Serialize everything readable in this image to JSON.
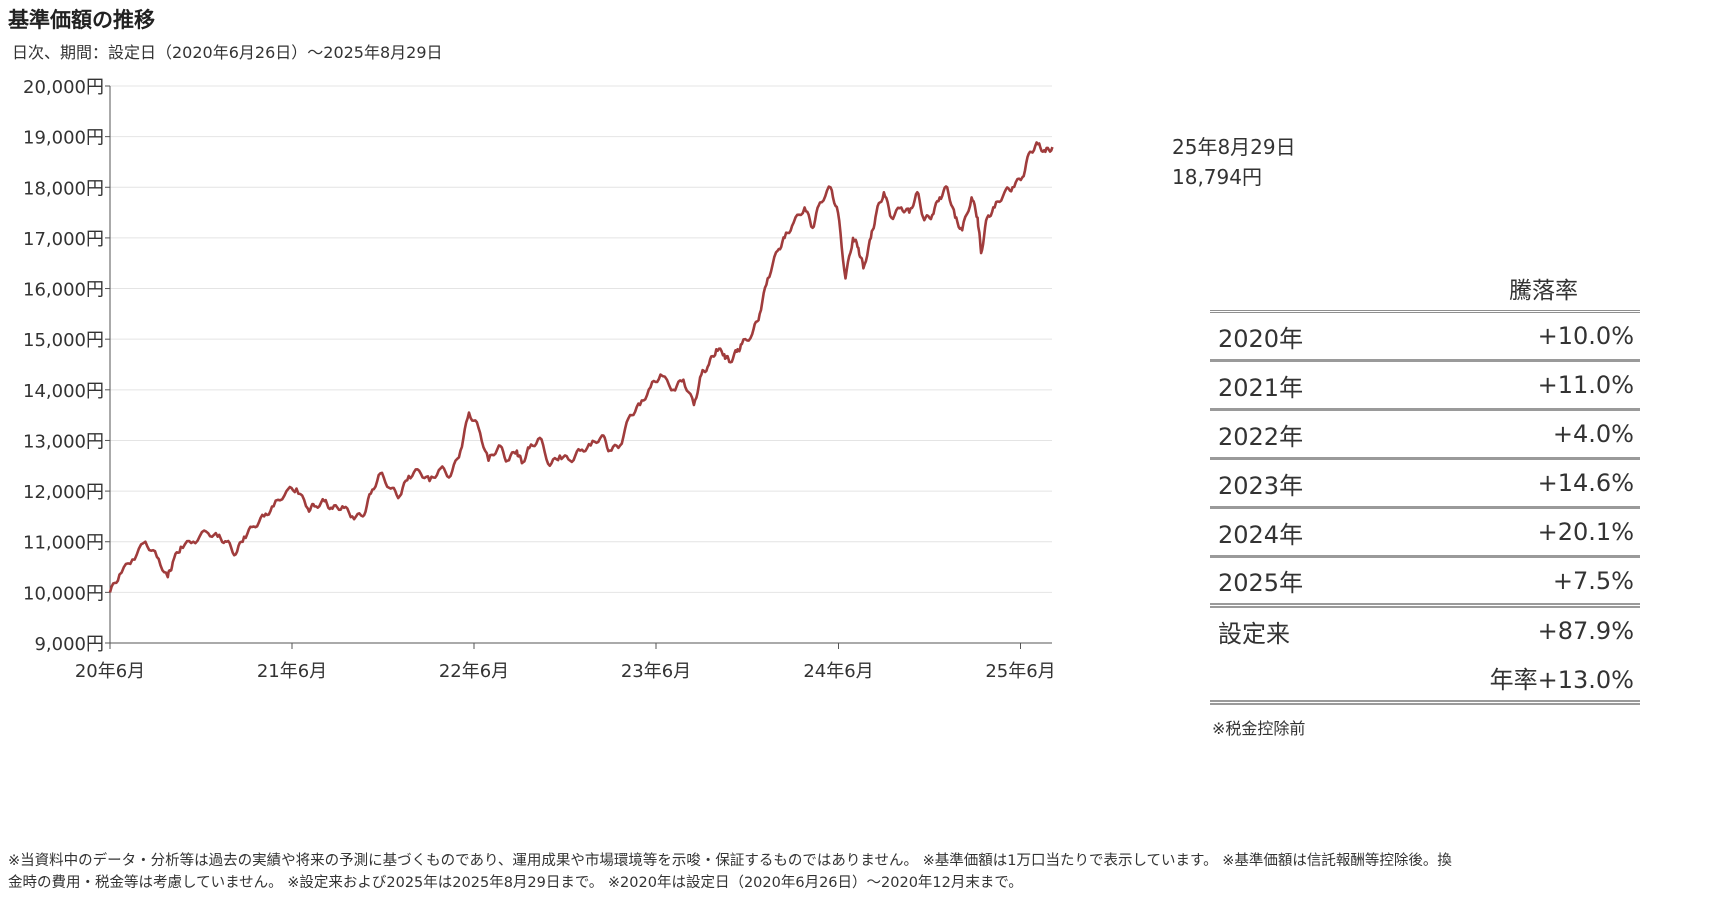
{
  "title": "基準価額の推移",
  "subtitle": "日次、期間：設定日（2020年6月26日）～2025年8月29日",
  "chart_data": {
    "type": "line",
    "y_unit": "円",
    "ylim": [
      9000,
      20000
    ],
    "y_ticks": [
      "20,000円",
      "19,000円",
      "18,000円",
      "17,000円",
      "16,000円",
      "15,000円",
      "14,000円",
      "13,000円",
      "12,000円",
      "11,000円",
      "10,000円",
      "9,000円"
    ],
    "x_ticks": [
      "20年6月",
      "21年6月",
      "22年6月",
      "23年6月",
      "24年6月",
      "25年6月"
    ],
    "x_tick_dates": [
      "2020-06",
      "2021-06",
      "2022-06",
      "2023-06",
      "2024-06",
      "2025-06"
    ],
    "grid": true,
    "line_color": "#a03c3c",
    "series": [
      {
        "x": [
          "2020-06-26",
          "2020-07-15",
          "2020-08-10",
          "2020-09-05",
          "2020-09-28",
          "2020-10-20",
          "2020-10-30",
          "2020-11-15",
          "2020-12-10",
          "2021-01-05",
          "2021-01-28",
          "2021-02-15",
          "2021-03-05",
          "2021-03-22",
          "2021-04-10",
          "2021-05-01",
          "2021-05-20",
          "2021-06-15",
          "2021-07-05",
          "2021-07-28",
          "2021-08-10",
          "2021-08-30",
          "2021-09-15",
          "2021-10-05",
          "2021-10-25",
          "2021-11-15",
          "2021-12-01",
          "2021-12-20",
          "2022-01-10",
          "2022-01-28",
          "2022-02-15",
          "2022-03-08",
          "2022-03-29",
          "2022-04-20",
          "2022-05-10",
          "2022-05-30",
          "2022-06-16",
          "2022-07-05",
          "2022-07-25",
          "2022-08-15",
          "2022-09-01",
          "2022-09-20",
          "2022-09-30",
          "2022-10-15",
          "2022-11-05",
          "2022-11-25",
          "2022-12-15",
          "2023-01-05",
          "2023-01-25",
          "2023-02-15",
          "2023-03-10",
          "2023-03-25",
          "2023-04-15",
          "2023-05-05",
          "2023-05-25",
          "2023-06-15",
          "2023-07-05",
          "2023-07-31",
          "2023-08-20",
          "2023-09-10",
          "2023-09-25",
          "2023-10-10",
          "2023-10-25",
          "2023-11-10",
          "2023-11-20",
          "2023-12-05",
          "2023-12-15",
          "2024-01-05",
          "2024-01-20",
          "2024-02-05",
          "2024-02-25",
          "2024-03-10",
          "2024-03-28",
          "2024-04-19",
          "2024-05-05",
          "2024-05-20",
          "2024-06-10",
          "2024-06-25",
          "2024-07-10",
          "2024-07-25",
          "2024-08-05",
          "2024-08-15",
          "2024-08-30",
          "2024-09-10",
          "2024-09-25",
          "2024-10-10",
          "2024-10-30",
          "2024-11-15",
          "2024-12-01",
          "2024-12-15",
          "2024-12-31",
          "2025-01-15",
          "2025-01-30",
          "2025-02-15",
          "2025-03-01",
          "2025-03-20",
          "2025-04-01",
          "2025-04-08",
          "2025-04-20",
          "2025-05-05",
          "2025-05-25",
          "2025-06-10",
          "2025-06-30",
          "2025-07-15",
          "2025-07-31",
          "2025-08-15",
          "2025-08-29"
        ],
        "y": [
          10000,
          10350,
          10650,
          11000,
          10700,
          10300,
          10600,
          10900,
          11000,
          11200,
          11100,
          11000,
          10750,
          11100,
          11300,
          11500,
          11700,
          12000,
          12050,
          11650,
          11700,
          11800,
          11650,
          11700,
          11500,
          11500,
          11950,
          12350,
          12050,
          11900,
          12300,
          12400,
          12200,
          12450,
          12300,
          12800,
          13550,
          13250,
          12600,
          12900,
          12600,
          12800,
          12550,
          12850,
          13050,
          12500,
          12700,
          12600,
          12800,
          12900,
          13100,
          12800,
          12900,
          13500,
          13700,
          14050,
          14300,
          14000,
          14200,
          13700,
          14300,
          14500,
          14800,
          14700,
          14550,
          14750,
          14900,
          15100,
          15500,
          16200,
          16750,
          17000,
          17300,
          17600,
          17200,
          17700,
          18000,
          17500,
          16200,
          17000,
          16800,
          16400,
          17000,
          17500,
          17900,
          17400,
          17600,
          17500,
          17900,
          17350,
          17450,
          17800,
          18000,
          17400,
          17150,
          17800,
          17400,
          16700,
          17400,
          17600,
          17900,
          18000,
          18200,
          18700,
          18850,
          18700,
          18794
        ]
      }
    ],
    "latest_point": {
      "date": "25年8月29日",
      "value": 18794,
      "label_value": "18,794円"
    }
  },
  "latest_label": {
    "date": "25年8月29日",
    "value": "18,794円"
  },
  "returns": {
    "header": "騰落率",
    "rows": [
      {
        "label": "2020年",
        "value": "+10.0%"
      },
      {
        "label": "2021年",
        "value": "+11.0%"
      },
      {
        "label": "2022年",
        "value": "+4.0%"
      },
      {
        "label": "2023年",
        "value": "+14.6%"
      },
      {
        "label": "2024年",
        "value": "+20.1%"
      },
      {
        "label": "2025年",
        "value": "+7.5%"
      }
    ],
    "cumulative": {
      "label": "設定来",
      "value": "+87.9%"
    },
    "annual": {
      "value": "年率+13.0%"
    },
    "note": "※税金控除前"
  },
  "disclaimer": {
    "line1": "※当資料中のデータ・分析等は過去の実績や将来の予測に基づくものであり、運用成果や市場環境等を示唆・保証するものではありません。 ※基準価額は1万口当たりで表示しています。 ※基準価額は信託報酬等控除後。換",
    "line2": "金時の費用・税金等は考慮していません。 ※設定来および2025年は2025年8月29日まで。 ※2020年は設定日（2020年6月26日）～2020年12月末まで。"
  }
}
